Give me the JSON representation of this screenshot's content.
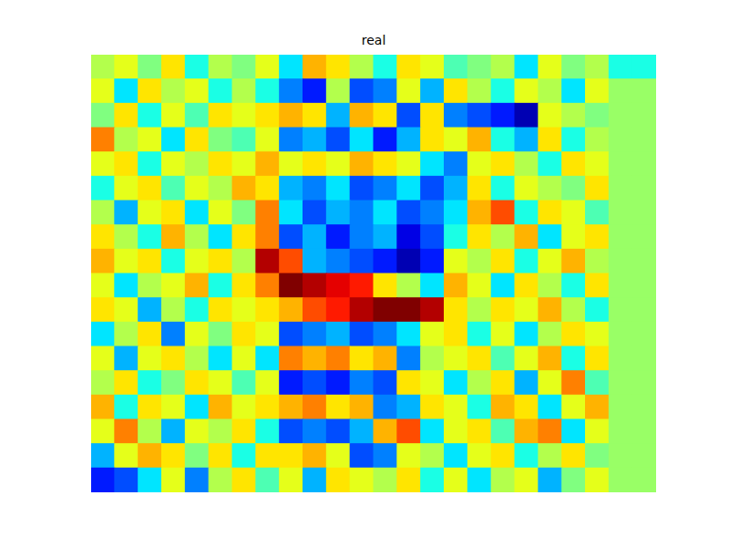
{
  "chart_data": {
    "type": "heatmap",
    "title": "real",
    "tick_labels": false,
    "clim": [
      -1,
      1
    ],
    "cells": [
      [
        0.1,
        0.2,
        0.0,
        0.3,
        -0.2,
        0.1,
        0.0,
        0.2,
        -0.3,
        0.4,
        0.3,
        0.1,
        -0.2,
        0.3,
        0.2,
        -0.1,
        0.0,
        0.1,
        -0.3,
        0.2,
        0.0,
        0.1,
        -0.2,
        -0.2
      ],
      [
        0.2,
        -0.3,
        0.3,
        0.1,
        0.2,
        -0.2,
        0.1,
        -0.2,
        -0.5,
        -0.7,
        0.1,
        -0.6,
        -0.5,
        0.2,
        -0.4,
        0.3,
        0.1,
        -0.2,
        0.2,
        0.1,
        -0.3,
        0.2,
        0.05,
        0.05
      ],
      [
        0.0,
        0.3,
        -0.2,
        0.2,
        -0.1,
        0.3,
        0.2,
        0.3,
        0.4,
        0.3,
        -0.4,
        0.4,
        0.3,
        -0.6,
        0.3,
        -0.5,
        -0.6,
        -0.7,
        -0.9,
        0.2,
        0.1,
        0.0,
        0.05,
        0.05
      ],
      [
        0.5,
        0.1,
        0.2,
        -0.3,
        0.3,
        0.0,
        -0.1,
        0.2,
        -0.5,
        -0.4,
        -0.6,
        -0.3,
        -0.7,
        -0.4,
        0.3,
        0.2,
        0.4,
        -0.2,
        -0.4,
        0.3,
        -0.2,
        0.1,
        0.05,
        0.05
      ],
      [
        0.2,
        0.3,
        -0.2,
        0.2,
        0.1,
        0.3,
        0.2,
        0.4,
        0.2,
        0.3,
        0.2,
        0.4,
        0.3,
        0.2,
        -0.3,
        -0.5,
        0.2,
        0.3,
        0.1,
        -0.2,
        0.3,
        0.2,
        0.05,
        0.05
      ],
      [
        -0.2,
        0.2,
        0.3,
        -0.1,
        0.2,
        0.1,
        0.4,
        0.3,
        -0.4,
        -0.5,
        -0.3,
        -0.6,
        -0.5,
        -0.3,
        -0.6,
        -0.4,
        0.3,
        -0.2,
        0.2,
        0.1,
        0.0,
        0.3,
        0.05,
        0.05
      ],
      [
        0.1,
        -0.4,
        0.2,
        0.3,
        -0.3,
        0.2,
        0.0,
        0.5,
        -0.3,
        -0.6,
        -0.4,
        -0.5,
        -0.3,
        -0.6,
        -0.5,
        -0.3,
        0.4,
        0.6,
        -0.2,
        0.3,
        0.2,
        -0.1,
        0.05,
        0.05
      ],
      [
        0.3,
        0.1,
        -0.2,
        0.4,
        0.1,
        -0.3,
        0.3,
        0.5,
        -0.6,
        -0.4,
        -0.7,
        -0.5,
        -0.4,
        -0.8,
        -0.6,
        -0.2,
        0.3,
        0.1,
        0.4,
        -0.3,
        0.2,
        0.3,
        0.05,
        0.05
      ],
      [
        0.4,
        0.2,
        0.3,
        -0.2,
        0.2,
        0.3,
        0.1,
        0.9,
        0.6,
        -0.4,
        -0.5,
        -0.6,
        -0.7,
        -0.9,
        -0.7,
        0.2,
        0.1,
        0.3,
        -0.2,
        0.2,
        0.4,
        0.1,
        0.05,
        0.05
      ],
      [
        0.2,
        -0.3,
        0.1,
        0.2,
        0.4,
        -0.2,
        0.3,
        0.5,
        1.0,
        0.9,
        0.8,
        0.7,
        0.3,
        0.1,
        -0.3,
        0.4,
        0.2,
        -0.3,
        0.3,
        0.1,
        -0.2,
        0.3,
        0.05,
        0.05
      ],
      [
        0.3,
        0.2,
        -0.4,
        0.1,
        -0.2,
        0.3,
        0.2,
        0.3,
        0.4,
        0.6,
        0.7,
        0.9,
        1.0,
        1.0,
        0.9,
        0.3,
        0.1,
        0.3,
        0.2,
        0.4,
        0.1,
        -0.2,
        0.05,
        0.05
      ],
      [
        -0.3,
        0.1,
        0.3,
        -0.5,
        0.2,
        0.0,
        0.3,
        0.2,
        -0.6,
        -0.5,
        -0.4,
        -0.6,
        -0.5,
        -0.3,
        0.2,
        0.3,
        -0.2,
        0.2,
        -0.3,
        0.1,
        0.3,
        0.2,
        0.05,
        0.05
      ],
      [
        0.2,
        -0.4,
        0.2,
        0.3,
        0.1,
        -0.3,
        0.2,
        -0.3,
        0.5,
        0.4,
        0.5,
        0.3,
        0.4,
        -0.5,
        0.1,
        0.2,
        0.3,
        -0.1,
        0.2,
        0.4,
        -0.2,
        0.3,
        0.05,
        0.05
      ],
      [
        0.1,
        0.3,
        -0.2,
        0.0,
        0.3,
        0.2,
        -0.1,
        0.2,
        -0.7,
        -0.6,
        -0.7,
        -0.5,
        -0.6,
        0.3,
        0.2,
        -0.3,
        0.1,
        0.3,
        -0.4,
        0.2,
        0.5,
        -0.1,
        0.05,
        0.05
      ],
      [
        0.4,
        -0.2,
        0.3,
        0.2,
        -0.3,
        0.4,
        0.2,
        0.3,
        0.4,
        0.5,
        0.3,
        0.4,
        -0.5,
        -0.4,
        0.3,
        0.2,
        -0.2,
        0.4,
        0.3,
        -0.3,
        0.2,
        0.4,
        0.05,
        0.05
      ],
      [
        0.2,
        0.5,
        0.1,
        -0.4,
        0.2,
        0.1,
        0.3,
        -0.2,
        -0.6,
        -0.5,
        -0.6,
        -0.4,
        0.4,
        0.6,
        -0.3,
        0.2,
        0.3,
        -0.1,
        0.4,
        0.5,
        -0.3,
        0.2,
        0.05,
        0.05
      ],
      [
        -0.4,
        0.2,
        0.4,
        0.3,
        0.0,
        0.3,
        -0.2,
        0.3,
        0.3,
        0.4,
        0.2,
        -0.6,
        -0.5,
        0.2,
        0.1,
        -0.3,
        0.2,
        0.3,
        -0.2,
        0.1,
        0.3,
        0.0,
        0.05,
        0.05
      ],
      [
        -0.7,
        -0.6,
        -0.3,
        0.2,
        -0.5,
        0.1,
        0.3,
        -0.1,
        0.2,
        -0.4,
        0.3,
        0.2,
        0.1,
        0.3,
        -0.2,
        0.2,
        -0.3,
        0.1,
        0.2,
        -0.4,
        0.0,
        0.2,
        0.05,
        0.05
      ]
    ]
  }
}
